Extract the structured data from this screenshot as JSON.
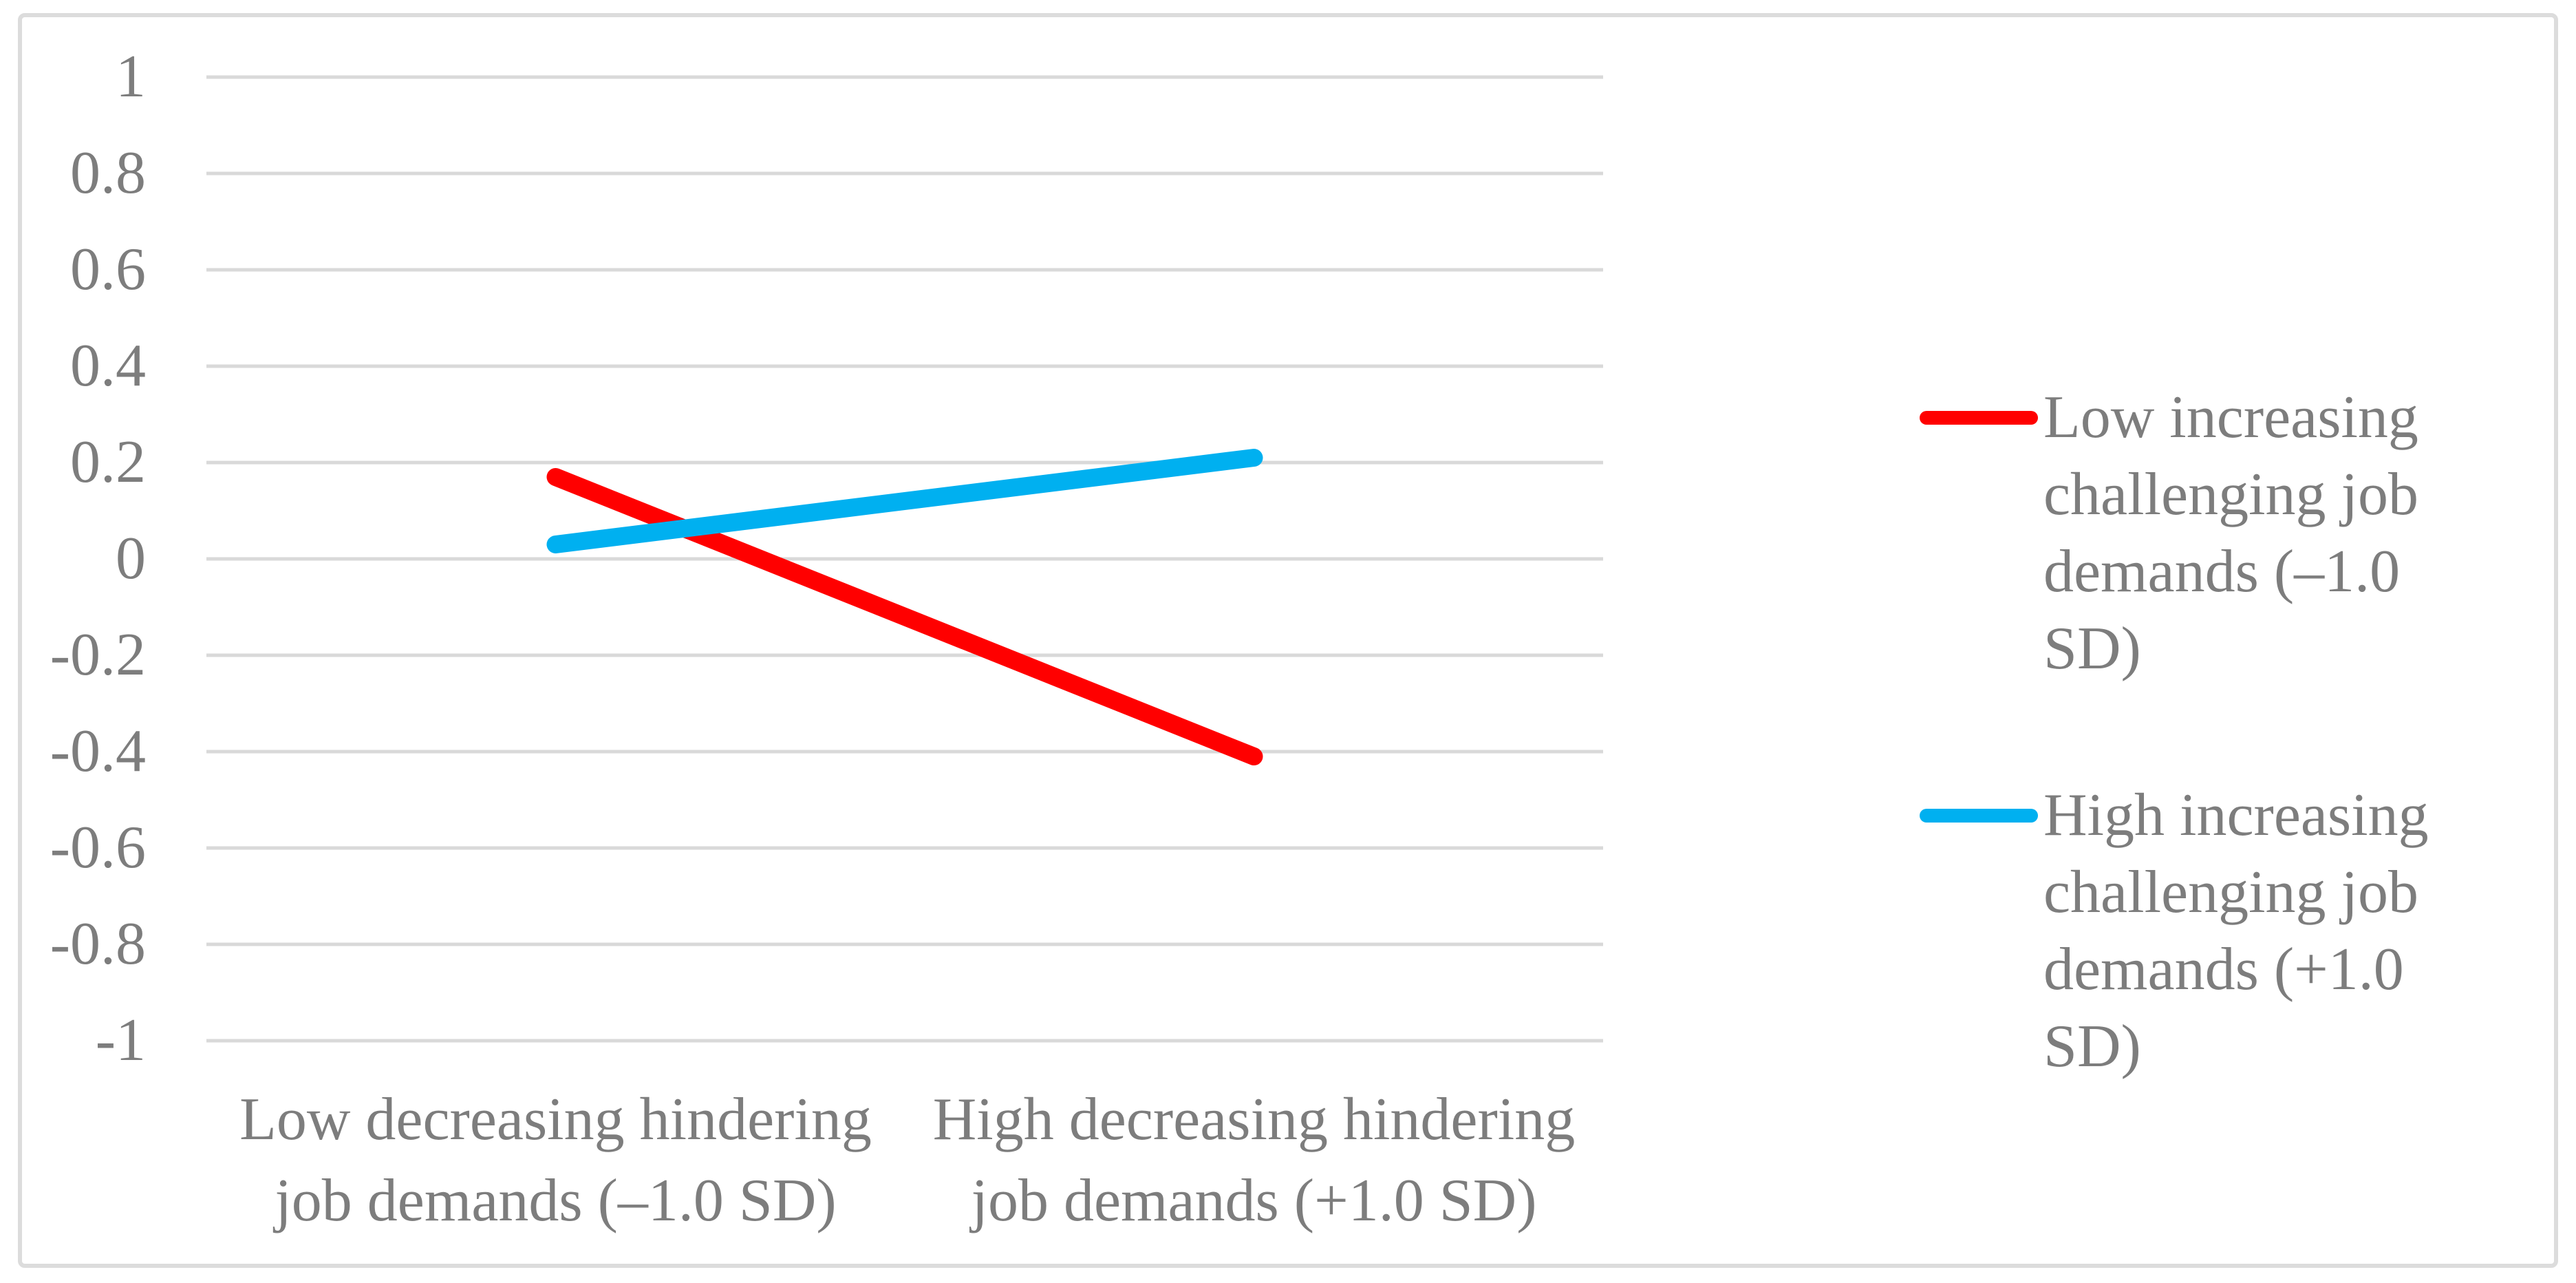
{
  "figure": {
    "background": "#ffffff",
    "border_color": "#dcdcdc"
  },
  "colors": {
    "gridline": "#d9d9d9",
    "text": "#7d7d7d",
    "series_red": "#ff0000",
    "series_blue": "#00b0f0"
  },
  "chart_data": {
    "type": "line",
    "title": "",
    "xlabel": "",
    "ylabel": "",
    "grid": true,
    "legend_position": "right",
    "ylim": [
      -1,
      1
    ],
    "y_ticks": [
      {
        "value": 1,
        "label": "1"
      },
      {
        "value": 0.8,
        "label": "0.8"
      },
      {
        "value": 0.6,
        "label": "0.6"
      },
      {
        "value": 0.4,
        "label": "0.4"
      },
      {
        "value": 0.2,
        "label": "0.2"
      },
      {
        "value": 0,
        "label": "0"
      },
      {
        "value": -0.2,
        "label": "-0.2"
      },
      {
        "value": -0.4,
        "label": "-0.4"
      },
      {
        "value": -0.6,
        "label": "-0.6"
      },
      {
        "value": -0.8,
        "label": "-0.8"
      },
      {
        "value": -1,
        "label": "-1"
      }
    ],
    "categories": [
      {
        "name": "Low decreasing hindering job demands (–1.0 SD)",
        "lines": [
          "Low decreasing hindering",
          "job demands (–1.0 SD)"
        ]
      },
      {
        "name": "High decreasing hindering job demands (+1.0 SD)",
        "lines": [
          "High decreasing hindering",
          "job demands (+1.0 SD)"
        ]
      }
    ],
    "series": [
      {
        "name": "Low increasing challenging job demands (–1.0 SD)",
        "legend_lines": [
          "Low increasing",
          "challenging job",
          "demands (–1.0",
          "SD)"
        ],
        "color": "#ff0000",
        "values": [
          0.17,
          -0.41
        ]
      },
      {
        "name": "High increasing challenging job demands (+1.0 SD)",
        "legend_lines": [
          "High increasing",
          "challenging job",
          "demands (+1.0",
          "SD)"
        ],
        "color": "#00b0f0",
        "values": [
          0.03,
          0.21
        ]
      }
    ]
  }
}
